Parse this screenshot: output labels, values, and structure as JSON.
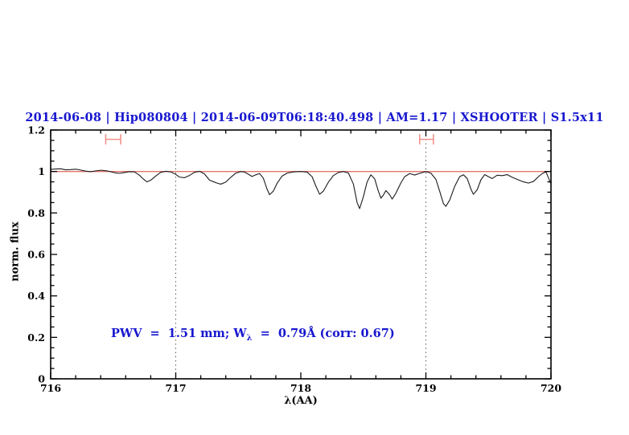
{
  "title": "2014-06-08 | Hip080804 | 2014-06-09T06:18:40.498 | AM=1.17 | XSHOOTER | S1.5x11",
  "annotation": {
    "pre": "PWV  =  1.51 mm; W",
    "sub": "λ",
    "post": "  =  0.79Å (corr: 0.67)"
  },
  "colors": {
    "title_blue": "#1717cf",
    "reference_red": "#e4736b",
    "marker_red": "#f0938c",
    "spectrum_black": "#1c1c1c",
    "axis_black": "#000000",
    "dotted_line": "#444444"
  },
  "chart_data": {
    "type": "line",
    "title": "2014-06-08 | Hip080804 | 2014-06-09T06:18:40.498 | AM=1.17 | XSHOOTER | S1.5x11",
    "xlabel": "λ(AA)",
    "ylabel": "norm. flux",
    "xlim": [
      716,
      720
    ],
    "ylim": [
      0,
      1.2
    ],
    "grid": "off",
    "legend": "none",
    "x_major_ticks": [
      716,
      717,
      718,
      719,
      720
    ],
    "x_tick_labels": [
      "716",
      "717",
      "718",
      "719",
      "720"
    ],
    "x_minor_step": 0.2,
    "y_major_ticks": [
      0,
      0.2,
      0.4,
      0.6,
      0.8,
      1.0,
      1.2
    ],
    "y_tick_labels": [
      "0",
      "0.2",
      "0.4",
      "0.6",
      "0.8",
      "1",
      "1.2"
    ],
    "y_minor_step": 0.05,
    "dotted_vlines": [
      717,
      719
    ],
    "reference_line_y": 1.0,
    "range_markers": [
      {
        "x_start": 716.44,
        "x_end": 716.56,
        "y": 1.155,
        "cap_half_height": 0.025
      },
      {
        "x_start": 718.95,
        "x_end": 719.06,
        "y": 1.155,
        "cap_half_height": 0.025
      }
    ],
    "series": [
      {
        "name": "normalized-telluric-spectrum",
        "points": [
          [
            716.0,
            1.01
          ],
          [
            716.04,
            1.012
          ],
          [
            716.08,
            1.013
          ],
          [
            716.12,
            1.008
          ],
          [
            716.16,
            1.009
          ],
          [
            716.2,
            1.011
          ],
          [
            716.24,
            1.007
          ],
          [
            716.28,
            1.002
          ],
          [
            716.32,
            0.999
          ],
          [
            716.36,
            1.003
          ],
          [
            716.4,
            1.006
          ],
          [
            716.44,
            1.004
          ],
          [
            716.48,
            0.999
          ],
          [
            716.52,
            0.993
          ],
          [
            716.55,
            0.991
          ],
          [
            716.59,
            0.995
          ],
          [
            716.63,
            0.999
          ],
          [
            716.67,
            0.998
          ],
          [
            716.71,
            0.982
          ],
          [
            716.74,
            0.964
          ],
          [
            716.77,
            0.95
          ],
          [
            716.8,
            0.958
          ],
          [
            716.84,
            0.978
          ],
          [
            716.88,
            0.996
          ],
          [
            716.92,
            1.001
          ],
          [
            716.96,
            0.998
          ],
          [
            717.0,
            0.986
          ],
          [
            717.03,
            0.973
          ],
          [
            717.07,
            0.97
          ],
          [
            717.11,
            0.981
          ],
          [
            717.15,
            0.996
          ],
          [
            717.19,
            1.001
          ],
          [
            717.23,
            0.988
          ],
          [
            717.27,
            0.958
          ],
          [
            717.3,
            0.951
          ],
          [
            717.33,
            0.944
          ],
          [
            717.36,
            0.939
          ],
          [
            717.4,
            0.949
          ],
          [
            717.44,
            0.972
          ],
          [
            717.48,
            0.992
          ],
          [
            717.52,
            1.0
          ],
          [
            717.55,
            0.997
          ],
          [
            717.58,
            0.987
          ],
          [
            717.61,
            0.976
          ],
          [
            717.64,
            0.984
          ],
          [
            717.67,
            0.99
          ],
          [
            717.7,
            0.968
          ],
          [
            717.73,
            0.915
          ],
          [
            717.75,
            0.888
          ],
          [
            717.78,
            0.905
          ],
          [
            717.81,
            0.943
          ],
          [
            717.85,
            0.978
          ],
          [
            717.89,
            0.992
          ],
          [
            717.94,
            0.998
          ],
          [
            718.0,
            1.0
          ],
          [
            718.05,
            0.997
          ],
          [
            718.09,
            0.975
          ],
          [
            718.12,
            0.93
          ],
          [
            718.15,
            0.89
          ],
          [
            718.18,
            0.905
          ],
          [
            718.22,
            0.948
          ],
          [
            718.26,
            0.98
          ],
          [
            718.3,
            0.995
          ],
          [
            718.34,
            1.0
          ],
          [
            718.38,
            0.993
          ],
          [
            718.42,
            0.94
          ],
          [
            718.45,
            0.85
          ],
          [
            718.47,
            0.821
          ],
          [
            718.5,
            0.878
          ],
          [
            718.53,
            0.95
          ],
          [
            718.56,
            0.984
          ],
          [
            718.59,
            0.965
          ],
          [
            718.62,
            0.905
          ],
          [
            718.64,
            0.871
          ],
          [
            718.66,
            0.886
          ],
          [
            718.68,
            0.908
          ],
          [
            718.71,
            0.888
          ],
          [
            718.73,
            0.867
          ],
          [
            718.76,
            0.895
          ],
          [
            718.8,
            0.945
          ],
          [
            718.83,
            0.975
          ],
          [
            718.87,
            0.99
          ],
          [
            718.91,
            0.983
          ],
          [
            718.95,
            0.991
          ],
          [
            719.0,
            1.0
          ],
          [
            719.04,
            0.992
          ],
          [
            719.08,
            0.962
          ],
          [
            719.11,
            0.905
          ],
          [
            719.14,
            0.845
          ],
          [
            719.16,
            0.832
          ],
          [
            719.19,
            0.862
          ],
          [
            719.23,
            0.928
          ],
          [
            719.27,
            0.975
          ],
          [
            719.3,
            0.984
          ],
          [
            719.33,
            0.966
          ],
          [
            719.36,
            0.915
          ],
          [
            719.38,
            0.89
          ],
          [
            719.41,
            0.912
          ],
          [
            719.44,
            0.96
          ],
          [
            719.47,
            0.985
          ],
          [
            719.5,
            0.975
          ],
          [
            719.53,
            0.966
          ],
          [
            719.57,
            0.982
          ],
          [
            719.61,
            0.98
          ],
          [
            719.65,
            0.985
          ],
          [
            719.69,
            0.972
          ],
          [
            719.73,
            0.962
          ],
          [
            719.78,
            0.95
          ],
          [
            719.82,
            0.944
          ],
          [
            719.86,
            0.952
          ],
          [
            719.9,
            0.975
          ],
          [
            719.93,
            0.99
          ],
          [
            719.96,
            0.998
          ],
          [
            720.0,
            0.94
          ]
        ]
      }
    ],
    "annotation_text": "PWV  =  1.51 mm; Wλ  =  0.79Å (corr: 0.67)"
  }
}
